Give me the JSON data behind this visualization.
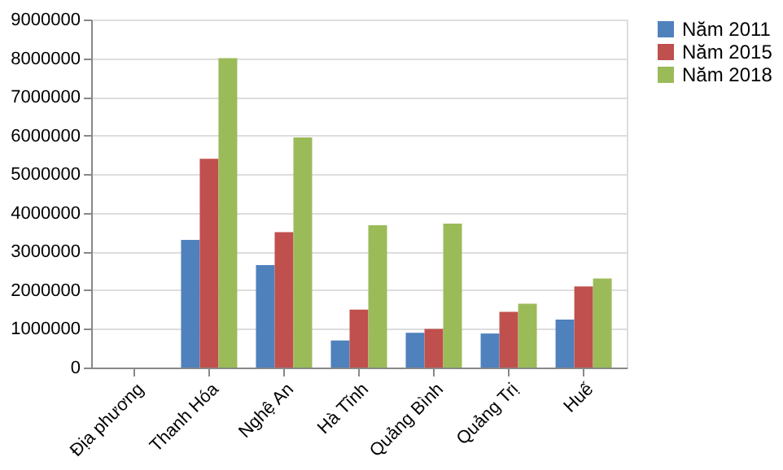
{
  "chart_data": {
    "type": "bar",
    "categories": [
      "Địa phương",
      "Thanh Hóa",
      "Nghệ An",
      "Hà Tĩnh",
      "Quảng Bình",
      "Quảng Trị",
      "Huế"
    ],
    "series": [
      {
        "name": "Năm 2011",
        "color": "#4f81bd",
        "values": [
          0,
          3300000,
          2650000,
          700000,
          900000,
          880000,
          1240000
        ]
      },
      {
        "name": "Năm 2015",
        "color": "#c0504d",
        "values": [
          0,
          5400000,
          3500000,
          1500000,
          1000000,
          1440000,
          2100000
        ]
      },
      {
        "name": "Năm 2018",
        "color": "#9bbb59",
        "values": [
          0,
          8000000,
          5950000,
          3680000,
          3720000,
          1650000,
          2300000
        ]
      }
    ],
    "ylim": [
      0,
      9000000
    ],
    "yticks": [
      0,
      1000000,
      2000000,
      3000000,
      4000000,
      5000000,
      6000000,
      7000000,
      8000000,
      9000000
    ],
    "grid": "y",
    "legend": "right"
  }
}
